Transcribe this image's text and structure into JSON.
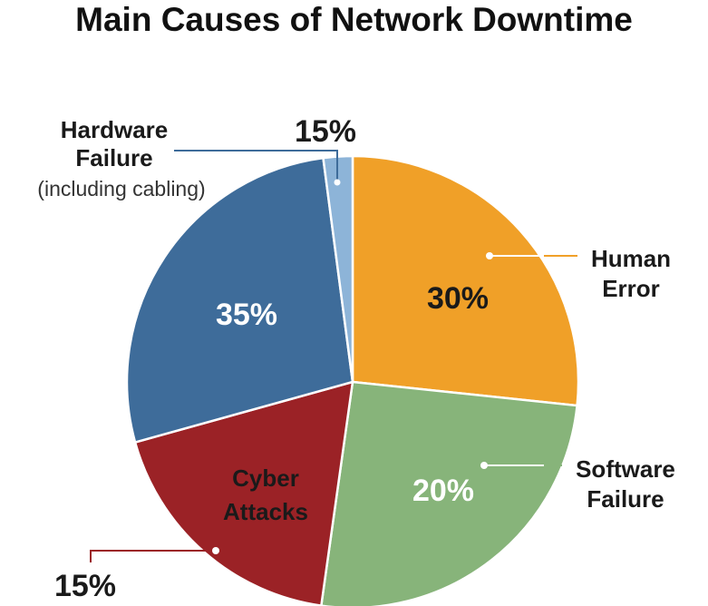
{
  "title": "Main Causes of Network Downtime",
  "chart_data": {
    "type": "pie",
    "title": "Main Causes of Network Downtime",
    "slices": [
      {
        "key": "human",
        "label_lines": [
          "Human",
          "Error"
        ],
        "note": "",
        "value": 30,
        "value_label": "30%",
        "color": "#F0A028",
        "value_text_color": "#1a1a1a"
      },
      {
        "key": "software",
        "label_lines": [
          "Software",
          "Failure"
        ],
        "note": "",
        "value": 20,
        "value_label": "20%",
        "color": "#87B47A",
        "value_text_color": "#ffffff"
      },
      {
        "key": "cyber",
        "label_lines": [
          "Cyber",
          "Attacks"
        ],
        "note": "",
        "value": 15,
        "value_label": "15%",
        "color": "#9B2226",
        "value_text_color": "#1a1a1a"
      },
      {
        "key": "unlabeled",
        "label_lines": [],
        "note": "",
        "value": 35,
        "value_label": "35%",
        "color": "#3E6C9A",
        "value_text_color": "#ffffff"
      },
      {
        "key": "hardware",
        "label_lines": [
          "Hardware",
          "Failure"
        ],
        "note": "(including cabling)",
        "value": 15,
        "value_label": "15%",
        "color": "#8DB4D8",
        "value_text_color": "#1a1a1a"
      }
    ]
  }
}
